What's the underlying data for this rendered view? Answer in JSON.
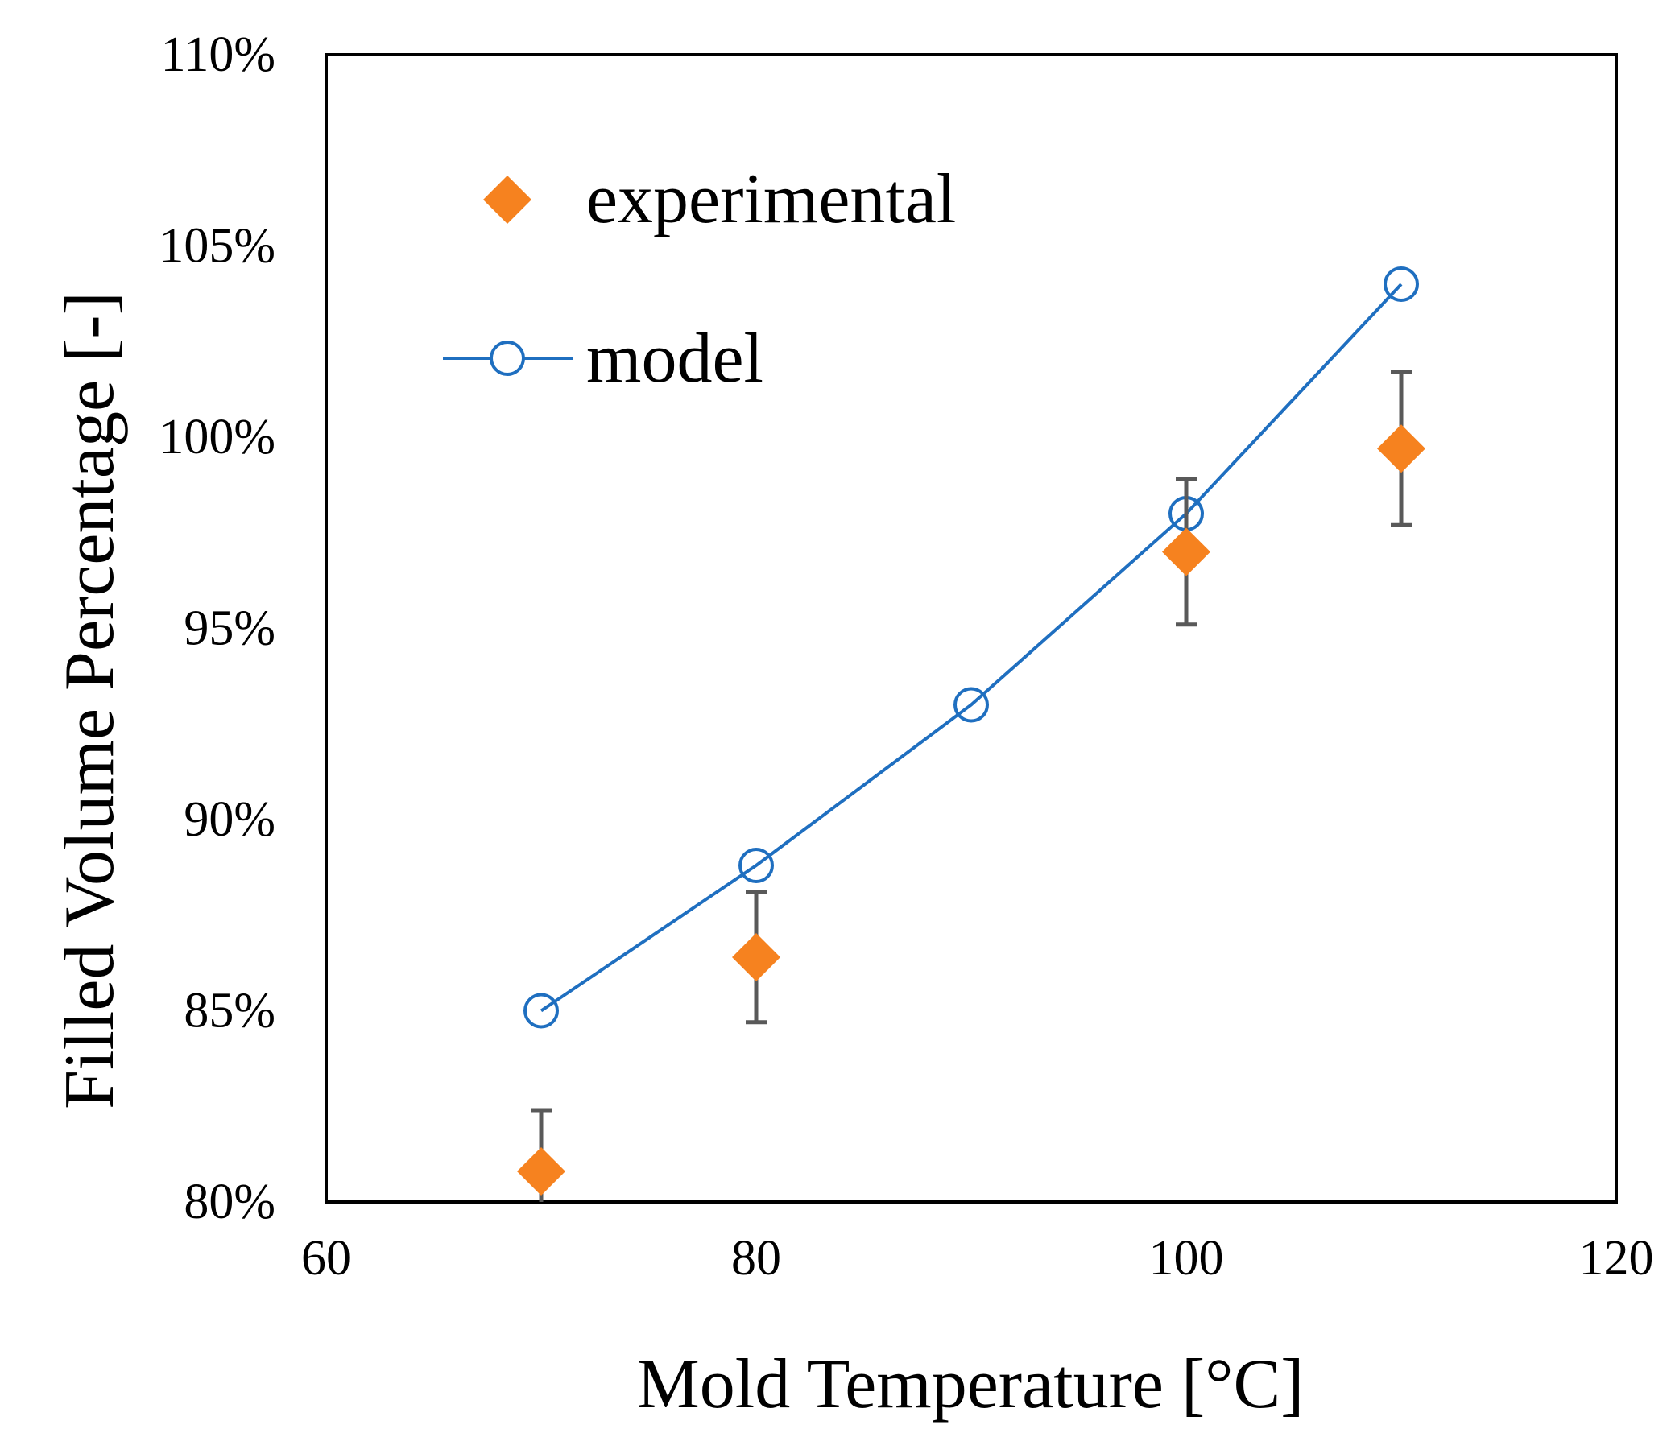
{
  "chart_data": {
    "type": "scatter",
    "title": "",
    "xlabel": "Mold Temperature [°C]",
    "ylabel": "Filled Volume Percentage [-]",
    "xlim": [
      60,
      120
    ],
    "ylim": [
      80,
      110
    ],
    "x_ticks": [
      60,
      80,
      100,
      120
    ],
    "x_tick_labels": [
      "60",
      "80",
      "100",
      "120"
    ],
    "y_ticks": [
      80,
      85,
      90,
      95,
      100,
      105,
      110
    ],
    "y_tick_labels": [
      "80%",
      "85%",
      "90%",
      "95%",
      "100%",
      "105%",
      "110%"
    ],
    "grid": false,
    "legend_position": "top-left",
    "series": [
      {
        "name": "experimental",
        "marker": "diamond",
        "line": false,
        "color": "#F6821F",
        "error_color": "#595959",
        "x": [
          70,
          80,
          100,
          110
        ],
        "y": [
          80.8,
          86.4,
          97.0,
          99.7
        ],
        "err": [
          1.6,
          1.7,
          1.9,
          2.0
        ]
      },
      {
        "name": "model",
        "marker": "open-circle",
        "line": true,
        "color": "#1F6FC0",
        "x": [
          70,
          80,
          90,
          100,
          110
        ],
        "y": [
          85.0,
          88.8,
          93.0,
          98.0,
          104.0
        ]
      }
    ]
  }
}
